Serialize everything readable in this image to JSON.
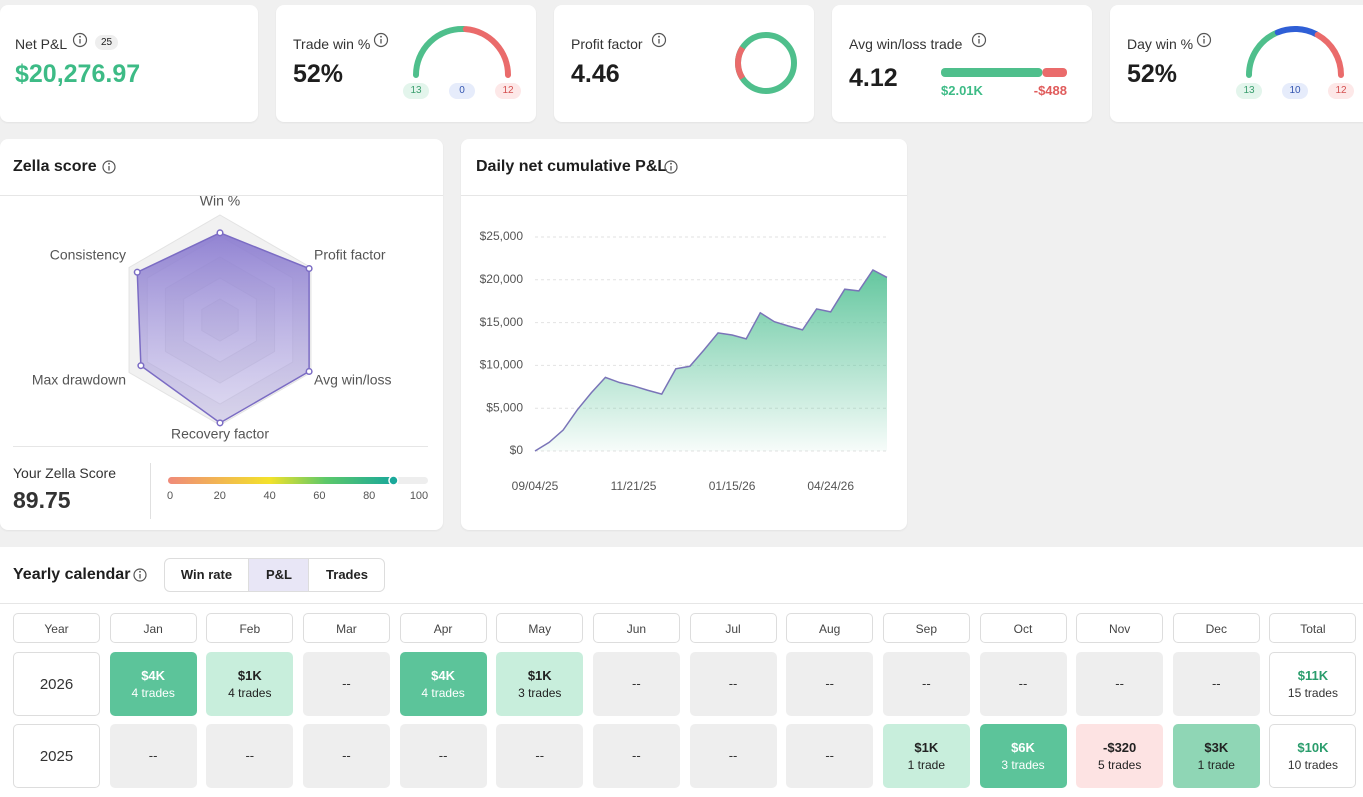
{
  "stats": {
    "net_pnl": {
      "label": "Net P&L",
      "badge": "25",
      "value": "$20,276.97"
    },
    "trade_win": {
      "label": "Trade win %",
      "value": "52%",
      "counts": [
        13,
        0,
        12
      ]
    },
    "profit_factor": {
      "label": "Profit factor",
      "value": 4.46
    },
    "avg_win_loss": {
      "label": "Avg win/loss trade",
      "value": 4.12,
      "win": {
        "value": 2010,
        "label": "$2.01K"
      },
      "loss": {
        "value": -488,
        "label": "-$488"
      }
    },
    "day_win": {
      "label": "Day win %",
      "value": "52%",
      "counts": [
        13,
        10,
        12
      ]
    },
    "gauge_colors": [
      "#4fbf8c",
      "#2f5fd6",
      "#ea6b6b"
    ]
  },
  "zella": {
    "title": "Zella score",
    "chart_data": {
      "type": "radar",
      "categories": [
        "Win %",
        "Profit factor",
        "Avg win/loss",
        "Recovery factor",
        "Max drawdown",
        "Consistency"
      ],
      "values": [
        83,
        98,
        98,
        98,
        87,
        91
      ],
      "rlim": [
        0,
        100
      ],
      "color": "#7b6cc4"
    },
    "score_label": "Your Zella Score",
    "score": 89.75,
    "scale": {
      "xlim": [
        0,
        100
      ],
      "xticks": [
        0,
        20,
        40,
        60,
        80,
        100
      ]
    }
  },
  "cumulative": {
    "title": "Daily net cumulative P&L",
    "chart_data": {
      "type": "area",
      "categories": [
        "09/04/25",
        null,
        null,
        null,
        null,
        null,
        null,
        "11/21/25",
        null,
        null,
        null,
        null,
        null,
        null,
        "01/15/26",
        null,
        null,
        null,
        null,
        null,
        null,
        "04/24/26",
        null,
        null,
        null,
        null
      ],
      "values": [
        0,
        1000,
        2450,
        4800,
        6800,
        8600,
        8000,
        7600,
        7100,
        6650,
        9600,
        9900,
        11800,
        13800,
        13550,
        13100,
        16150,
        15100,
        14600,
        14150,
        16600,
        16250,
        18900,
        18700,
        21150,
        20277
      ],
      "color": "#5cc49a",
      "line_color": "#7a74b8",
      "ylim": [
        0,
        25000
      ],
      "yticks": [
        {
          "value": 0,
          "label": "$0"
        },
        {
          "value": 5000,
          "label": "$5,000"
        },
        {
          "value": 10000,
          "label": "$10,000"
        },
        {
          "value": 15000,
          "label": "$15,000"
        },
        {
          "value": 20000,
          "label": "$20,000"
        },
        {
          "value": 25000,
          "label": "$25,000"
        }
      ],
      "grid": true
    }
  },
  "calendar": {
    "title": "Yearly calendar",
    "tabs": [
      "Win rate",
      "P&L",
      "Trades"
    ],
    "active_tab": 1,
    "header": [
      "Year",
      "Jan",
      "Feb",
      "Mar",
      "Apr",
      "May",
      "Jun",
      "Jul",
      "Aug",
      "Sep",
      "Oct",
      "Nov",
      "Dec",
      "Total"
    ],
    "rows": [
      {
        "year": "2026",
        "cells": [
          {
            "pnl": "$4K",
            "trades": "4 trades",
            "color": "#5cc49a",
            "text_color": "#ffffff"
          },
          {
            "pnl": "$1K",
            "trades": "4 trades",
            "color": "#c8eedc",
            "text_color": "#222222"
          },
          {
            "pnl": "--",
            "color": "#eeeeee",
            "text_color": "#333333"
          },
          {
            "pnl": "$4K",
            "trades": "4 trades",
            "color": "#5cc49a",
            "text_color": "#ffffff"
          },
          {
            "pnl": "$1K",
            "trades": "3 trades",
            "color": "#c8eedc",
            "text_color": "#222222"
          },
          {
            "pnl": "--",
            "color": "#eeeeee",
            "text_color": "#333333"
          },
          {
            "pnl": "--",
            "color": "#eeeeee",
            "text_color": "#333333"
          },
          {
            "pnl": "--",
            "color": "#eeeeee",
            "text_color": "#333333"
          },
          {
            "pnl": "--",
            "color": "#eeeeee",
            "text_color": "#333333"
          },
          {
            "pnl": "--",
            "color": "#eeeeee",
            "text_color": "#333333"
          },
          {
            "pnl": "--",
            "color": "#eeeeee",
            "text_color": "#333333"
          },
          {
            "pnl": "--",
            "color": "#eeeeee",
            "text_color": "#333333"
          }
        ],
        "total": {
          "pnl": "$11K",
          "trades": "15 trades"
        }
      },
      {
        "year": "2025",
        "cells": [
          {
            "pnl": "--",
            "color": "#eeeeee",
            "text_color": "#333333"
          },
          {
            "pnl": "--",
            "color": "#eeeeee",
            "text_color": "#333333"
          },
          {
            "pnl": "--",
            "color": "#eeeeee",
            "text_color": "#333333"
          },
          {
            "pnl": "--",
            "color": "#eeeeee",
            "text_color": "#333333"
          },
          {
            "pnl": "--",
            "color": "#eeeeee",
            "text_color": "#333333"
          },
          {
            "pnl": "--",
            "color": "#eeeeee",
            "text_color": "#333333"
          },
          {
            "pnl": "--",
            "color": "#eeeeee",
            "text_color": "#333333"
          },
          {
            "pnl": "--",
            "color": "#eeeeee",
            "text_color": "#333333"
          },
          {
            "pnl": "$1K",
            "trades": "1 trade",
            "color": "#c8eedc",
            "text_color": "#222222"
          },
          {
            "pnl": "$6K",
            "trades": "3 trades",
            "color": "#5cc49a",
            "text_color": "#ffffff"
          },
          {
            "pnl": "-$320",
            "trades": "5 trades",
            "color": "#fde3e3",
            "text_color": "#222222"
          },
          {
            "pnl": "$3K",
            "trades": "1 trade",
            "color": "#8fd6b5",
            "text_color": "#222222"
          }
        ],
        "total": {
          "pnl": "$10K",
          "trades": "10 trades"
        }
      }
    ]
  }
}
